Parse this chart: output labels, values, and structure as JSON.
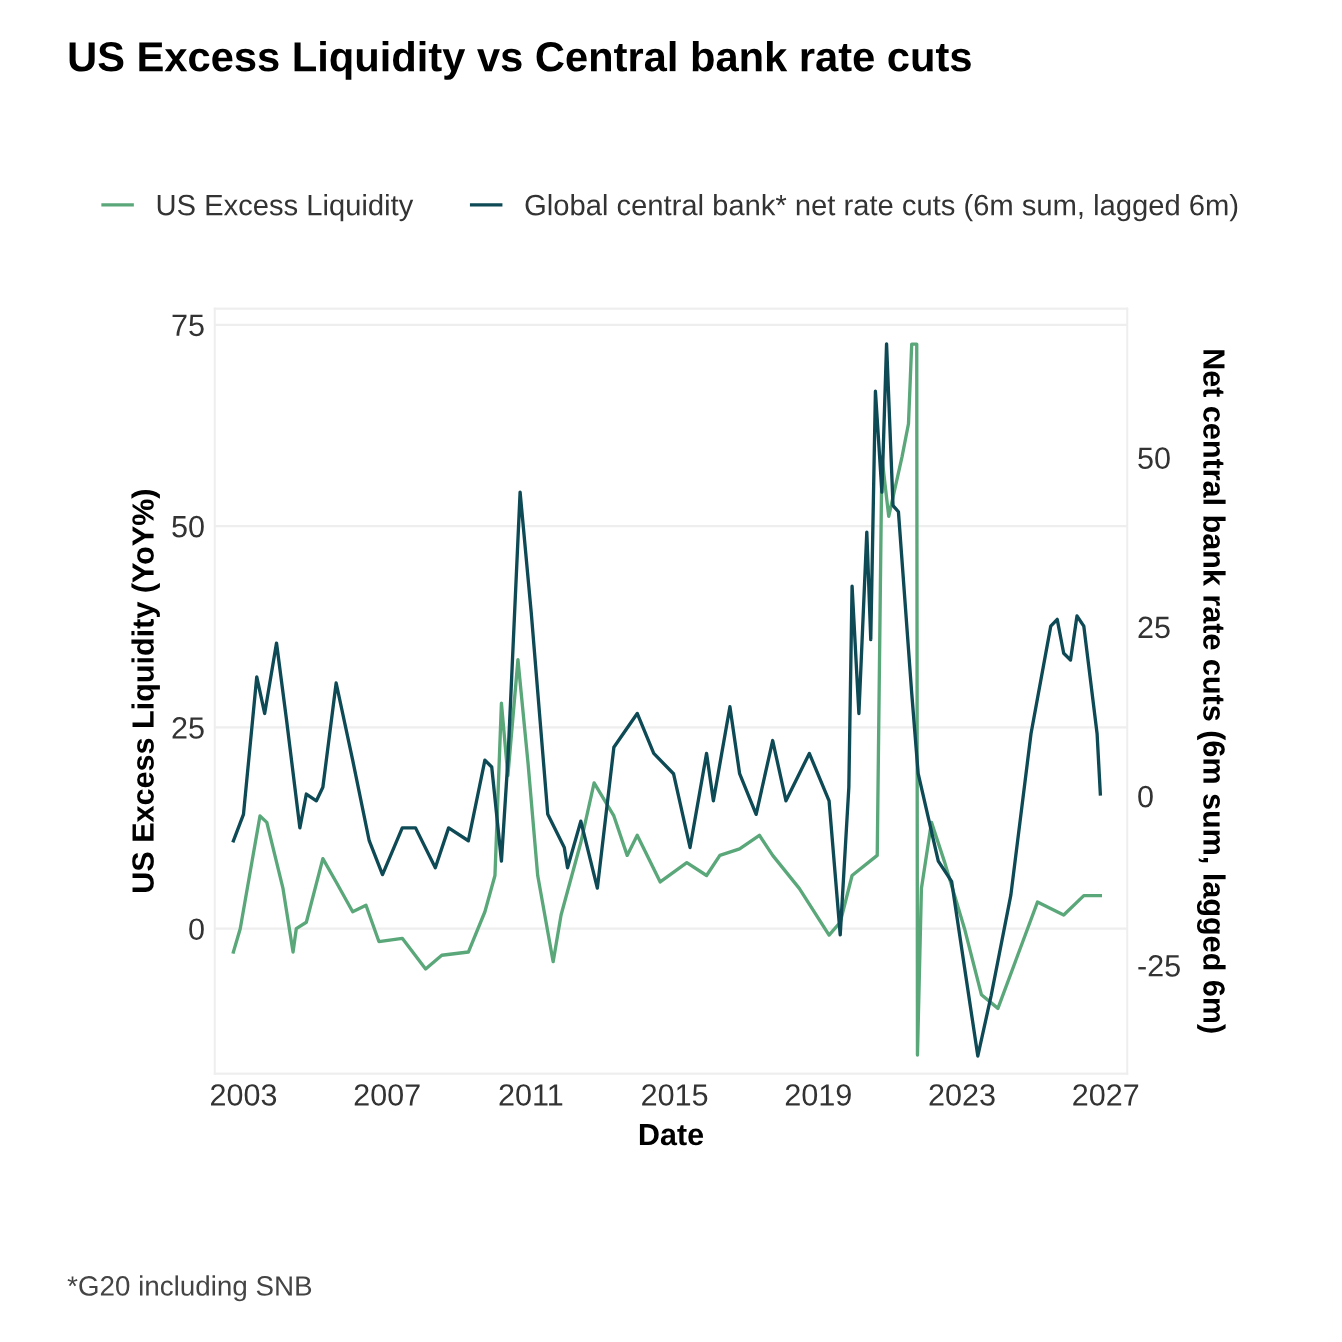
{
  "chart_data": {
    "type": "line",
    "title": "US Excess Liquidity vs Central bank rate cuts",
    "xlabel": "Date",
    "ylabel": "US Excess Liquidity (YoY%)",
    "y2label": "Net central bank rate cuts (6m sum, lagged 6m)",
    "annotations": [
      "*G20 including SNB"
    ],
    "xlim": [
      2002.2,
      2027.6
    ],
    "xticks": [
      2003,
      2007,
      2011,
      2015,
      2019,
      2023,
      2027
    ],
    "ylim": [
      -18,
      77
    ],
    "yticks": [
      0,
      25,
      50,
      75
    ],
    "y2lim": [
      -41,
      72
    ],
    "y2ticks": [
      -25,
      0,
      25,
      50
    ],
    "grid": "y",
    "legend": "top",
    "marker": "none",
    "line_style": "solid",
    "series": [
      {
        "name": "US Excess Liquidity",
        "color": "#5aa77a",
        "x": [
          2002.72,
          2002.91,
          2003.46,
          2003.65,
          2004.1,
          2004.38,
          2004.47,
          2004.75,
          2005.21,
          2005.58,
          2006.04,
          2006.41,
          2006.77,
          2007.42,
          2008.07,
          2008.52,
          2009.26,
          2009.72,
          2010.0,
          2010.18,
          2010.36,
          2010.64,
          2010.92,
          2011.19,
          2011.62,
          2011.84,
          2012.39,
          2012.76,
          2013.31,
          2013.68,
          2013.96,
          2014.6,
          2015.34,
          2015.89,
          2016.26,
          2016.81,
          2017.36,
          2017.73,
          2018.47,
          2019.3,
          2019.61,
          2019.94,
          2020.64,
          2020.77,
          2020.96,
          2021.33,
          2021.51,
          2021.6,
          2021.74,
          2021.76,
          2021.87,
          2022.15,
          2022.52,
          2023.07,
          2023.54,
          2024.0,
          2024.55,
          2025.1,
          2025.83,
          2026.39,
          2026.85
        ],
        "values": [
          -2.9,
          0,
          14.0,
          13.2,
          5.0,
          -2.9,
          0,
          0.8,
          8.7,
          5.8,
          2.1,
          2.9,
          -1.6,
          -1.2,
          -5.0,
          -3.3,
          -2.9,
          2.1,
          6.6,
          28.0,
          19.0,
          33.4,
          20.6,
          6.6,
          -4.1,
          1.7,
          10.7,
          18.1,
          14.0,
          9.1,
          11.6,
          5.8,
          8.2,
          6.6,
          9.1,
          9.9,
          11.6,
          9.1,
          5.0,
          -0.8,
          0.8,
          6.6,
          9.1,
          58.6,
          51.2,
          58.6,
          62.7,
          72.6,
          72.6,
          -15.7,
          5.0,
          13.2,
          8.2,
          0,
          -8.2,
          -9.9,
          -3.3,
          3.3,
          1.7,
          4.1,
          4.1
        ]
      },
      {
        "name": "Global central bank* net rate cuts (6m sum, lagged 6m)",
        "color": "#0d4a55",
        "axis": "y2",
        "x": [
          2002.72,
          2003.0,
          2003.37,
          2003.59,
          2003.92,
          2004.2,
          2004.57,
          2004.75,
          2005.03,
          2005.21,
          2005.58,
          2006.04,
          2006.5,
          2006.87,
          2007.42,
          2007.79,
          2008.34,
          2008.71,
          2009.26,
          2009.72,
          2009.91,
          2010.18,
          2010.36,
          2010.7,
          2011.01,
          2011.47,
          2011.93,
          2012.02,
          2012.39,
          2012.85,
          2013.31,
          2013.96,
          2014.42,
          2014.97,
          2015.43,
          2015.89,
          2016.08,
          2016.54,
          2016.81,
          2017.27,
          2017.73,
          2018.1,
          2018.75,
          2019.3,
          2019.61,
          2019.85,
          2019.94,
          2020.13,
          2020.35,
          2020.46,
          2020.59,
          2020.77,
          2020.9,
          2021.08,
          2021.23,
          2021.6,
          2021.78,
          2022.34,
          2022.71,
          2023.44,
          2023.81,
          2024.36,
          2024.92,
          2025.47,
          2025.65,
          2025.83,
          2026.02,
          2026.2,
          2026.39,
          2026.76,
          2026.85
        ],
        "values": [
          -6.6,
          -2.7,
          17.6,
          12.2,
          22.6,
          11.2,
          -4.7,
          0.3,
          -0.7,
          1.3,
          16.7,
          5.3,
          -6.6,
          -11.6,
          -4.7,
          -4.7,
          -10.6,
          -4.7,
          -6.6,
          5.3,
          4.3,
          -9.6,
          5.3,
          44.9,
          27.1,
          -2.7,
          -7.6,
          -10.6,
          -3.7,
          -13.6,
          7.2,
          12.2,
          6.3,
          3.3,
          -7.6,
          6.3,
          -0.7,
          13.2,
          3.3,
          -2.7,
          8.2,
          -0.7,
          6.3,
          -0.7,
          -20.5,
          1.3,
          31.0,
          12.2,
          39.0,
          23.1,
          59.8,
          44.9,
          66.8,
          42.9,
          42.0,
          15.2,
          3.3,
          -9.6,
          -12.6,
          -38.4,
          -29.5,
          -14.6,
          9.2,
          25.1,
          26.1,
          21.1,
          20.1,
          26.6,
          25.1,
          9.2,
          0.3
        ]
      }
    ]
  }
}
